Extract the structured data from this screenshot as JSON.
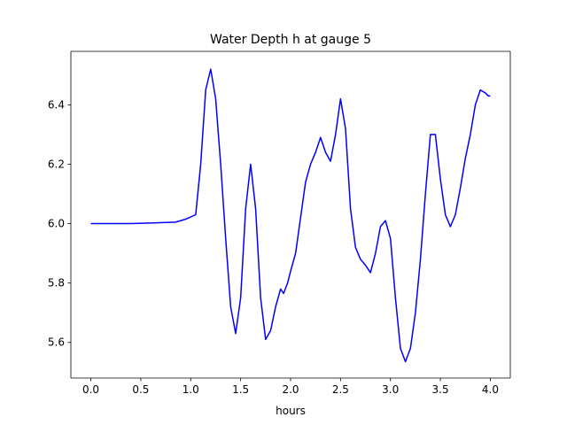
{
  "chart_data": {
    "type": "line",
    "title": "Water Depth h at gauge 5",
    "xlabel": "hours",
    "ylabel": "",
    "xlim": [
      -0.2,
      4.2
    ],
    "ylim": [
      5.48,
      6.58
    ],
    "grid": false,
    "x_ticks": [
      0.0,
      0.5,
      1.0,
      1.5,
      2.0,
      2.5,
      3.0,
      3.5,
      4.0
    ],
    "x_tick_labels": [
      "0.0",
      "0.5",
      "1.0",
      "1.5",
      "2.0",
      "2.5",
      "3.0",
      "3.5",
      "4.0"
    ],
    "y_ticks": [
      5.6,
      5.8,
      6.0,
      6.2,
      6.4
    ],
    "y_tick_labels": [
      "5.6",
      "5.8",
      "6.0",
      "6.2",
      "6.4"
    ],
    "series": [
      {
        "color": "#0000ff",
        "x": [
          0.0,
          0.2,
          0.4,
          0.6,
          0.85,
          0.95,
          1.05,
          1.1,
          1.15,
          1.2,
          1.25,
          1.3,
          1.35,
          1.4,
          1.45,
          1.5,
          1.55,
          1.6,
          1.65,
          1.7,
          1.75,
          1.8,
          1.85,
          1.9,
          1.93,
          1.97,
          2.0,
          2.05,
          2.1,
          2.15,
          2.2,
          2.25,
          2.3,
          2.35,
          2.4,
          2.45,
          2.5,
          2.55,
          2.6,
          2.65,
          2.7,
          2.75,
          2.8,
          2.85,
          2.9,
          2.95,
          3.0,
          3.05,
          3.1,
          3.15,
          3.2,
          3.25,
          3.3,
          3.35,
          3.4,
          3.45,
          3.5,
          3.55,
          3.6,
          3.65,
          3.7,
          3.75,
          3.8,
          3.85,
          3.9,
          3.95,
          3.98,
          4.0
        ],
        "y": [
          6.0,
          6.0,
          6.0,
          6.002,
          6.005,
          6.015,
          6.03,
          6.2,
          6.45,
          6.52,
          6.42,
          6.2,
          5.95,
          5.72,
          5.63,
          5.75,
          6.05,
          6.2,
          6.05,
          5.75,
          5.61,
          5.64,
          5.72,
          5.78,
          5.765,
          5.8,
          5.84,
          5.9,
          6.02,
          6.14,
          6.2,
          6.24,
          6.29,
          6.24,
          6.21,
          6.3,
          6.42,
          6.32,
          6.05,
          5.92,
          5.88,
          5.86,
          5.835,
          5.9,
          5.99,
          6.01,
          5.95,
          5.75,
          5.58,
          5.535,
          5.58,
          5.7,
          5.88,
          6.1,
          6.3,
          6.3,
          6.15,
          6.03,
          5.99,
          6.03,
          6.12,
          6.22,
          6.3,
          6.4,
          6.45,
          6.44,
          6.43,
          6.43
        ]
      }
    ]
  }
}
